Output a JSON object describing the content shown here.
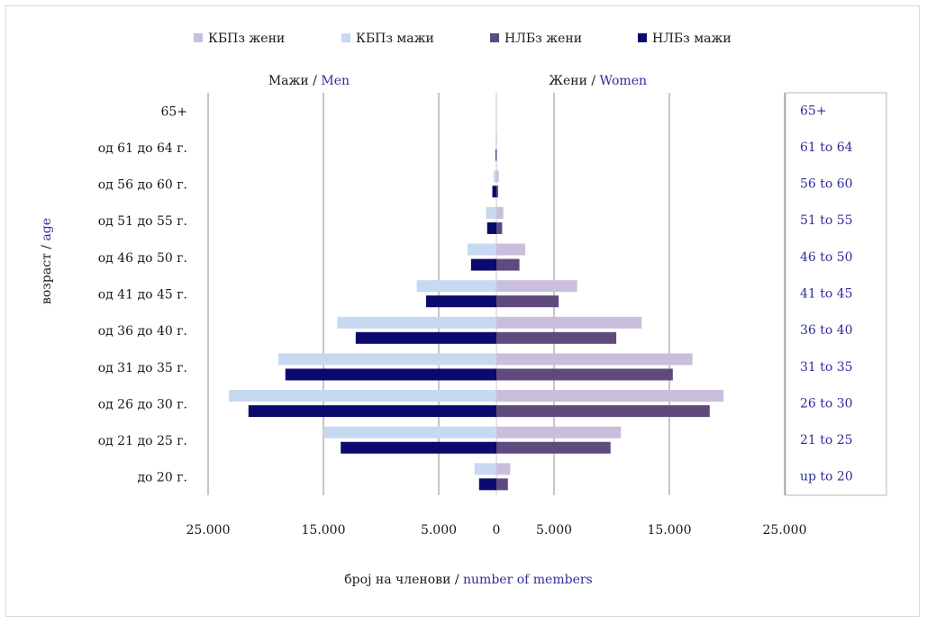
{
  "chart_data": {
    "type": "bar",
    "orientation": "horizontal",
    "categories_mk": [
      "до 20 г.",
      "од 21 до 25 г.",
      "од 26 до 30 г.",
      "од 31 до 35 г.",
      "од 36 до 40 г.",
      "од 41 до 45 г.",
      "од 46 до 50 г.",
      "од 51 до 55 г.",
      "од 56 до 60 г.",
      "од 61 до 64 г.",
      "65+"
    ],
    "categories_en": [
      "up to 20",
      "21 to 25",
      "26 to 30",
      "31 to 35",
      "36 to 40",
      "41 to 45",
      "46 to 50",
      "51 to 55",
      "56 to 60",
      "61 to 64",
      "65+"
    ],
    "series": [
      {
        "name": "КБПз жени",
        "side": "women",
        "color": "#c9bfdc",
        "values": [
          1200,
          10800,
          19700,
          17000,
          12600,
          7000,
          2500,
          600,
          200,
          50,
          0
        ]
      },
      {
        "name": "КБПз мажи",
        "side": "men",
        "color": "#c6d9f1",
        "values": [
          1900,
          15000,
          23200,
          18900,
          13800,
          6900,
          2500,
          900,
          250,
          80,
          0
        ]
      },
      {
        "name": "НЛБз жени",
        "side": "women",
        "color": "#5e4a7c",
        "values": [
          1000,
          9900,
          18500,
          15300,
          10400,
          5400,
          2000,
          500,
          150,
          30,
          0
        ]
      },
      {
        "name": "НЛБз мажи",
        "side": "men",
        "color": "#0a0a6e",
        "values": [
          1500,
          13500,
          21500,
          18300,
          12200,
          6100,
          2200,
          800,
          350,
          60,
          0
        ]
      }
    ],
    "x_ticks": [
      "25.000",
      "15.000",
      "5.000",
      "0",
      "5.000",
      "15.000",
      "25.000"
    ],
    "xlim": [
      -25000,
      25000
    ],
    "grid": true,
    "legend_position": "top"
  },
  "labels": {
    "men_mk": "Мажи / ",
    "men_en": "Men",
    "women_mk": "Жени / ",
    "women_en": "Women",
    "ylabel_mk": "возраст / ",
    "ylabel_en": "age",
    "xlabel_mk": "број на членови / ",
    "xlabel_en": "number of members"
  }
}
